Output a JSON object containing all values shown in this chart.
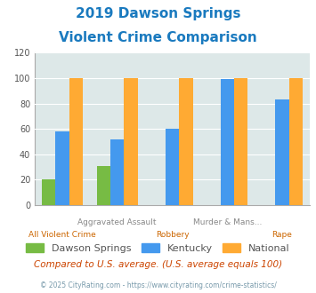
{
  "title_line1": "2019 Dawson Springs",
  "title_line2": "Violent Crime Comparison",
  "title_color": "#1a7abf",
  "categories": [
    "All Violent Crime",
    "Aggravated Assault",
    "Robbery",
    "Murder & Mans...",
    "Rape"
  ],
  "top_labels": [
    "",
    "Aggravated Assault",
    "",
    "Murder & Mans...",
    ""
  ],
  "bottom_labels": [
    "All Violent Crime",
    "",
    "Robbery",
    "",
    "Rape"
  ],
  "dawson_springs": [
    20,
    31,
    0,
    0,
    0
  ],
  "kentucky": [
    58,
    52,
    60,
    99,
    83
  ],
  "national": [
    100,
    100,
    100,
    100,
    100
  ],
  "dawson_color": "#77bb44",
  "kentucky_color": "#4499ee",
  "national_color": "#ffaa33",
  "ylim": [
    0,
    120
  ],
  "yticks": [
    0,
    20,
    40,
    60,
    80,
    100,
    120
  ],
  "legend_labels": [
    "Dawson Springs",
    "Kentucky",
    "National"
  ],
  "footnote1": "Compared to U.S. average. (U.S. average equals 100)",
  "footnote2": "© 2025 CityRating.com - https://www.cityrating.com/crime-statistics/",
  "footnote1_color": "#cc4400",
  "footnote2_color": "#7799aa",
  "plot_bg": "#dde8e8",
  "top_label_color": "#888888",
  "bottom_label_color": "#cc6600"
}
